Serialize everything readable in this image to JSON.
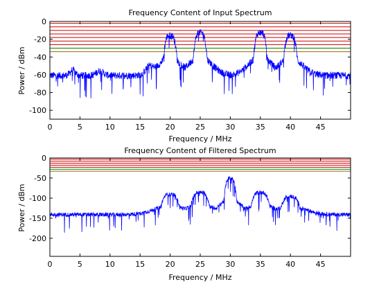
{
  "chart_data": [
    {
      "type": "line",
      "title": "Frequency Content of Input Spectrum",
      "xlabel": "Frequency / MHz",
      "ylabel": "Power / dBm",
      "xlim": [
        0,
        50
      ],
      "ylim": [
        -110,
        0
      ],
      "xticks": [
        0,
        5,
        10,
        15,
        20,
        25,
        30,
        35,
        40,
        45
      ],
      "yticks": [
        0,
        -20,
        -40,
        -60,
        -80,
        -100
      ],
      "series_color": "#0000ff",
      "noise_floor_dbm": -60,
      "peaks": [
        {
          "center_mhz": 20,
          "level_dbm": -15
        },
        {
          "center_mhz": 25,
          "level_dbm": -12
        },
        {
          "center_mhz": 35,
          "level_dbm": -12
        },
        {
          "center_mhz": 40,
          "level_dbm": -15
        }
      ],
      "threshold_lines": [
        {
          "y": -2,
          "color": "#cc0000"
        },
        {
          "y": -6,
          "color": "#cc0000"
        },
        {
          "y": -10,
          "color": "#cc0000"
        },
        {
          "y": -14,
          "color": "#cc0000"
        },
        {
          "y": -18,
          "color": "#cc0000"
        },
        {
          "y": -22,
          "color": "#cc0000"
        },
        {
          "y": -26,
          "color": "#cc0000"
        },
        {
          "y": -30,
          "color": "#008000"
        },
        {
          "y": -34,
          "color": "#996600"
        }
      ]
    },
    {
      "type": "line",
      "title": "Frequency Content of Filtered Spectrum",
      "xlabel": "Frequency / MHz",
      "ylabel": "Power / dBm",
      "xlim": [
        0,
        50
      ],
      "ylim": [
        -245,
        0
      ],
      "xticks": [
        0,
        5,
        10,
        15,
        20,
        25,
        30,
        35,
        40,
        45
      ],
      "yticks": [
        0,
        -50,
        -100,
        -150,
        -200
      ],
      "series_color": "#0000ff",
      "noise_floor_dbm": -140,
      "peaks": [
        {
          "center_mhz": 20,
          "level_dbm": -90
        },
        {
          "center_mhz": 25,
          "level_dbm": -85
        },
        {
          "center_mhz": 30,
          "level_dbm": -50
        },
        {
          "center_mhz": 35,
          "level_dbm": -85
        },
        {
          "center_mhz": 40,
          "level_dbm": -95
        }
      ],
      "threshold_lines": [
        {
          "y": -3,
          "color": "#cc0000"
        },
        {
          "y": -8,
          "color": "#cc0000"
        },
        {
          "y": -13,
          "color": "#cc0000"
        },
        {
          "y": -18,
          "color": "#cc0000"
        },
        {
          "y": -23,
          "color": "#cc0000"
        },
        {
          "y": -28,
          "color": "#008000"
        },
        {
          "y": -33,
          "color": "#996600"
        }
      ]
    }
  ]
}
